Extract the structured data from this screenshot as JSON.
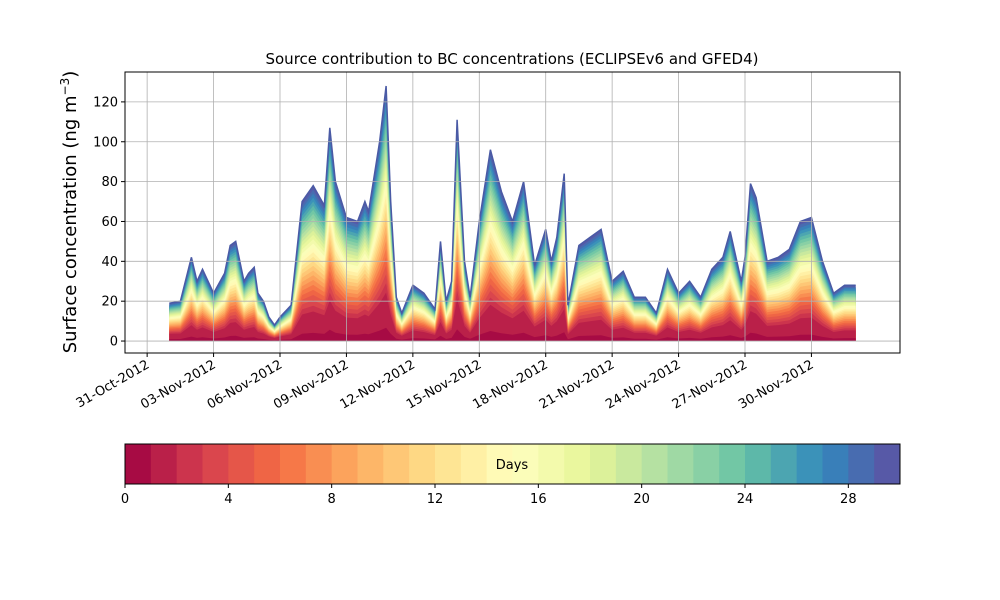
{
  "chart_data": {
    "type": "area",
    "title": "Source contribution to BC concentrations (ECLIPSEv6 and GFED4)",
    "ylabel": "Surface concentration (ng m",
    "ylabel_exp": "−3",
    "ylabel_close": ")",
    "xlabel": "",
    "xlim": [
      "2012-10-30",
      "2012-12-04"
    ],
    "ylim": [
      -6,
      135
    ],
    "grid": true,
    "stacking": "stacked by source age (days 0–30)",
    "x_tick_labels": [
      "31-Oct-2012",
      "03-Nov-2012",
      "06-Nov-2012",
      "09-Nov-2012",
      "12-Nov-2012",
      "15-Nov-2012",
      "18-Nov-2012",
      "21-Nov-2012",
      "24-Nov-2012",
      "27-Nov-2012",
      "30-Nov-2012"
    ],
    "x_tick_dates": [
      "2012-10-31",
      "2012-11-03",
      "2012-11-06",
      "2012-11-09",
      "2012-11-12",
      "2012-11-15",
      "2012-11-18",
      "2012-11-21",
      "2012-11-24",
      "2012-11-27",
      "2012-11-30"
    ],
    "y_ticks": [
      0,
      20,
      40,
      60,
      80,
      100,
      120
    ],
    "total": {
      "x": [
        "2012-11-01",
        "2012-11-01 12:00",
        "2012-11-02",
        "2012-11-02 06:00",
        "2012-11-02 12:00",
        "2012-11-03",
        "2012-11-03 12:00",
        "2012-11-03 18:00",
        "2012-11-04",
        "2012-11-04 09:00",
        "2012-11-04 14:00",
        "2012-11-04 20:00",
        "2012-11-05",
        "2012-11-05 06:00",
        "2012-11-05 12:00",
        "2012-11-05 18:00",
        "2012-11-06",
        "2012-11-06 12:00",
        "2012-11-07",
        "2012-11-07 12:00",
        "2012-11-08",
        "2012-11-08 06:00",
        "2012-11-08 12:00",
        "2012-11-09",
        "2012-11-09 12:00",
        "2012-11-09 20:00",
        "2012-11-10",
        "2012-11-10 12:00",
        "2012-11-10 19:00",
        "2012-11-11",
        "2012-11-11 06:00",
        "2012-11-11 12:00",
        "2012-11-12",
        "2012-11-12 12:00",
        "2012-11-13",
        "2012-11-13 06:00",
        "2012-11-13 12:00",
        "2012-11-13 18:00",
        "2012-11-14",
        "2012-11-14 08:00",
        "2012-11-14 14:00",
        "2012-11-15",
        "2012-11-15 12:00",
        "2012-11-16",
        "2012-11-16 12:00",
        "2012-11-17",
        "2012-11-17 12:00",
        "2012-11-18",
        "2012-11-18 06:00",
        "2012-11-18 12:00",
        "2012-11-18 20:00",
        "2012-11-19",
        "2012-11-19 12:00",
        "2012-11-20",
        "2012-11-20 12:00",
        "2012-11-21",
        "2012-11-21 12:00",
        "2012-11-22",
        "2012-11-22 12:00",
        "2012-11-23",
        "2012-11-23 12:00",
        "2012-11-24",
        "2012-11-24 12:00",
        "2012-11-25",
        "2012-11-25 12:00",
        "2012-11-26",
        "2012-11-26 08:00",
        "2012-11-26 20:00",
        "2012-11-27",
        "2012-11-27 06:00",
        "2012-11-27 12:00",
        "2012-11-28",
        "2012-11-28 12:00",
        "2012-11-29",
        "2012-11-29 12:00",
        "2012-11-30",
        "2012-11-30 12:00",
        "2012-12-01",
        "2012-12-01 12:00",
        "2012-12-02"
      ],
      "y": [
        19,
        20,
        42,
        30,
        36,
        24,
        34,
        48,
        50,
        30,
        34,
        37,
        24,
        20,
        12,
        8,
        12,
        18,
        70,
        78,
        68,
        107,
        80,
        62,
        60,
        70,
        65,
        100,
        128,
        70,
        22,
        14,
        28,
        24,
        16,
        50,
        20,
        30,
        111,
        40,
        22,
        60,
        96,
        75,
        60,
        80,
        38,
        56,
        40,
        52,
        84,
        18,
        48,
        52,
        56,
        30,
        35,
        22,
        22,
        14,
        36,
        24,
        30,
        22,
        36,
        42,
        55,
        30,
        42,
        79,
        72,
        40,
        42,
        46,
        60,
        62,
        40,
        24,
        28,
        28
      ]
    },
    "colorbar": {
      "label": "Days",
      "range": [
        0,
        30
      ],
      "tick_labels": [
        "0",
        "4",
        "8",
        "12",
        "16",
        "20",
        "24",
        "28"
      ],
      "ticks": [
        0,
        4,
        8,
        12,
        16,
        20,
        24,
        28
      ],
      "colormap": [
        "#9e0142",
        "#d53e4f",
        "#f46d43",
        "#fdae61",
        "#fee08b",
        "#ffffbf",
        "#e6f598",
        "#abdda4",
        "#66c2a5",
        "#3288bd",
        "#5e4fa2"
      ]
    }
  }
}
